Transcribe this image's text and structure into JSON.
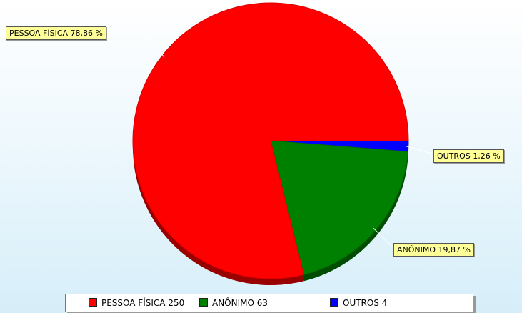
{
  "chart_data": {
    "type": "pie",
    "series": [
      {
        "name": "PESSOA FÍSICA",
        "value": 250,
        "percent_label": "PESSOA FÍSICA 78,86 %",
        "legend_label": "PESSOA FÍSICA 250",
        "color": "#ff0000"
      },
      {
        "name": "ANÔNIMO",
        "value": 63,
        "percent_label": "ANÔNIMO 19,87 %",
        "legend_label": "ANÔNIMO 63",
        "color": "#008000"
      },
      {
        "name": "OUTROS",
        "value": 4,
        "percent_label": "OUTROS 1,26 %",
        "legend_label": "OUTROS 4",
        "color": "#0000ff"
      }
    ],
    "legend_placement": "bottom",
    "style": "3d"
  }
}
